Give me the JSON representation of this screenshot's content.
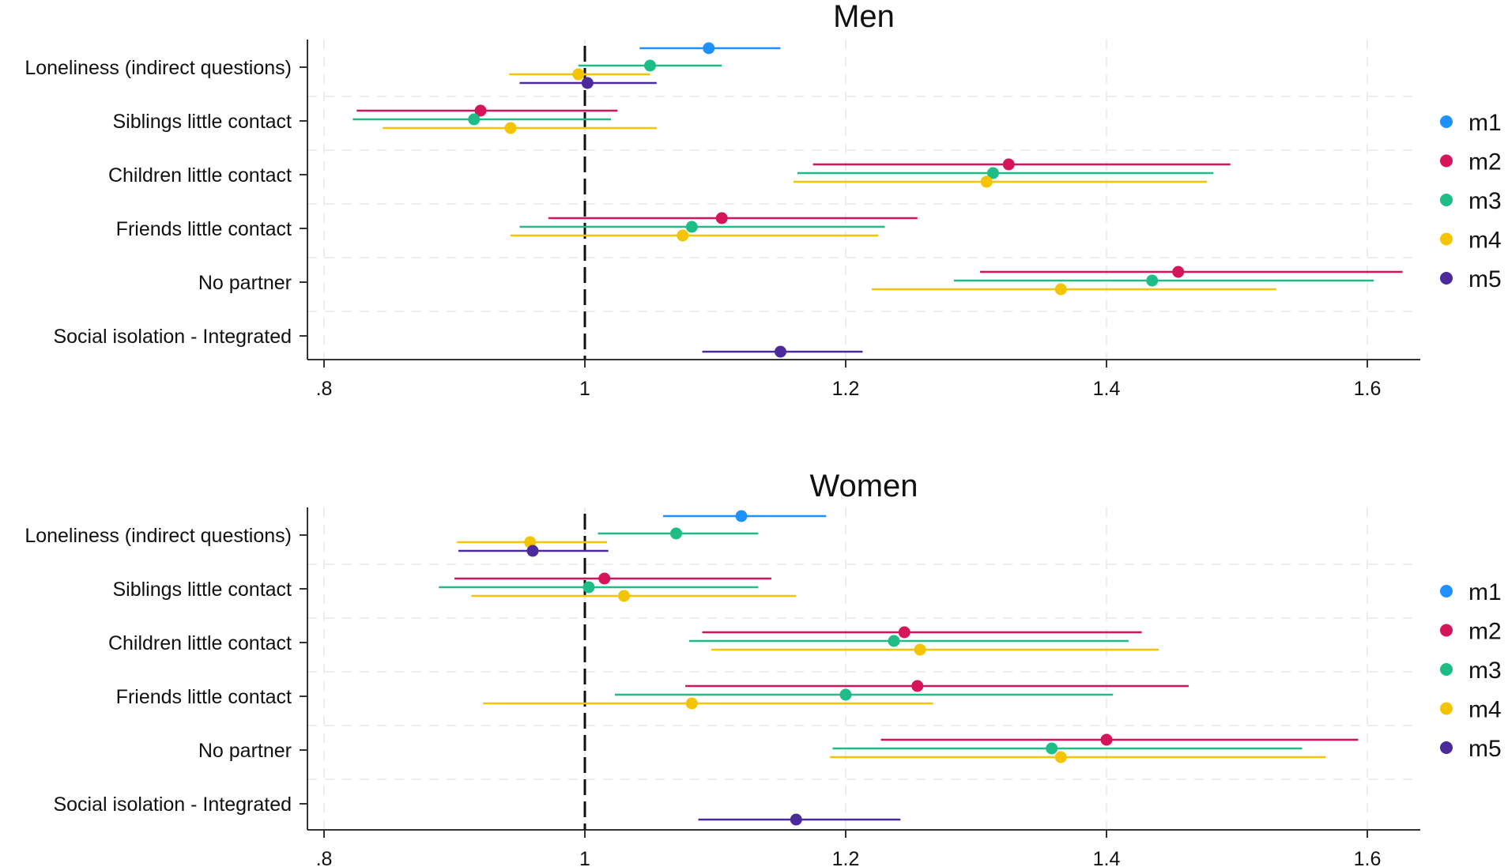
{
  "chart_data": [
    {
      "type": "coefficient-plot",
      "title": "Men",
      "categories": [
        "Loneliness (indirect questions)",
        "Siblings little contact",
        "Children little contact",
        "Friends little contact",
        "No partner",
        "Social isolation - Integrated"
      ],
      "xlim": [
        0.79,
        1.64
      ],
      "xticks": [
        0.8,
        1.0,
        1.2,
        1.4,
        1.6
      ],
      "xtick_labels": [
        ".8",
        "1",
        "1.2",
        "1.4",
        "1.6"
      ],
      "reference_line": 1,
      "legend": [
        "m1",
        "m2",
        "m3",
        "m4",
        "m5"
      ],
      "series": [
        {
          "name": "m1",
          "color": "#1e90ff",
          "points": [
            {
              "category": 0,
              "est": 1.095,
              "lo": 1.042,
              "hi": 1.15
            }
          ]
        },
        {
          "name": "m2",
          "color": "#d6145a",
          "points": [
            {
              "category": 1,
              "est": 0.92,
              "lo": 0.825,
              "hi": 1.025
            },
            {
              "category": 2,
              "est": 1.325,
              "lo": 1.175,
              "hi": 1.495
            },
            {
              "category": 3,
              "est": 1.105,
              "lo": 0.972,
              "hi": 1.255
            },
            {
              "category": 4,
              "est": 1.455,
              "lo": 1.303,
              "hi": 1.627
            }
          ]
        },
        {
          "name": "m3",
          "color": "#1ebd85",
          "points": [
            {
              "category": 0,
              "est": 1.05,
              "lo": 0.995,
              "hi": 1.105
            },
            {
              "category": 1,
              "est": 0.915,
              "lo": 0.822,
              "hi": 1.02
            },
            {
              "category": 2,
              "est": 1.313,
              "lo": 1.163,
              "hi": 1.482
            },
            {
              "category": 3,
              "est": 1.082,
              "lo": 0.95,
              "hi": 1.23
            },
            {
              "category": 4,
              "est": 1.435,
              "lo": 1.283,
              "hi": 1.605
            }
          ]
        },
        {
          "name": "m4",
          "color": "#f5c400",
          "points": [
            {
              "category": 0,
              "est": 0.995,
              "lo": 0.942,
              "hi": 1.05
            },
            {
              "category": 1,
              "est": 0.943,
              "lo": 0.845,
              "hi": 1.055
            },
            {
              "category": 2,
              "est": 1.308,
              "lo": 1.16,
              "hi": 1.477
            },
            {
              "category": 3,
              "est": 1.075,
              "lo": 0.943,
              "hi": 1.225
            },
            {
              "category": 4,
              "est": 1.365,
              "lo": 1.22,
              "hi": 1.53
            }
          ]
        },
        {
          "name": "m5",
          "color": "#4b2a9b",
          "points": [
            {
              "category": 0,
              "est": 1.002,
              "lo": 0.95,
              "hi": 1.055
            },
            {
              "category": 5,
              "est": 1.15,
              "lo": 1.09,
              "hi": 1.213
            }
          ]
        }
      ]
    },
    {
      "type": "coefficient-plot",
      "title": "Women",
      "categories": [
        "Loneliness (indirect questions)",
        "Siblings little contact",
        "Children little contact",
        "Friends little contact",
        "No partner",
        "Social isolation - Integrated"
      ],
      "xlim": [
        0.79,
        1.64
      ],
      "xticks": [
        0.8,
        1.0,
        1.2,
        1.4,
        1.6
      ],
      "xtick_labels": [
        ".8",
        "1",
        "1.2",
        "1.4",
        "1.6"
      ],
      "reference_line": 1,
      "legend": [
        "m1",
        "m2",
        "m3",
        "m4",
        "m5"
      ],
      "series": [
        {
          "name": "m1",
          "color": "#1e90ff",
          "points": [
            {
              "category": 0,
              "est": 1.12,
              "lo": 1.06,
              "hi": 1.185
            }
          ]
        },
        {
          "name": "m2",
          "color": "#d6145a",
          "points": [
            {
              "category": 1,
              "est": 1.015,
              "lo": 0.9,
              "hi": 1.143
            },
            {
              "category": 2,
              "est": 1.245,
              "lo": 1.09,
              "hi": 1.427
            },
            {
              "category": 3,
              "est": 1.255,
              "lo": 1.077,
              "hi": 1.463
            },
            {
              "category": 4,
              "est": 1.4,
              "lo": 1.227,
              "hi": 1.593
            }
          ]
        },
        {
          "name": "m3",
          "color": "#1ebd85",
          "points": [
            {
              "category": 0,
              "est": 1.07,
              "lo": 1.01,
              "hi": 1.133
            },
            {
              "category": 1,
              "est": 1.003,
              "lo": 0.888,
              "hi": 1.133
            },
            {
              "category": 2,
              "est": 1.237,
              "lo": 1.08,
              "hi": 1.417
            },
            {
              "category": 3,
              "est": 1.2,
              "lo": 1.023,
              "hi": 1.405
            },
            {
              "category": 4,
              "est": 1.358,
              "lo": 1.19,
              "hi": 1.55
            }
          ]
        },
        {
          "name": "m4",
          "color": "#f5c400",
          "points": [
            {
              "category": 0,
              "est": 0.958,
              "lo": 0.902,
              "hi": 1.017
            },
            {
              "category": 1,
              "est": 1.03,
              "lo": 0.913,
              "hi": 1.162
            },
            {
              "category": 2,
              "est": 1.257,
              "lo": 1.097,
              "hi": 1.44
            },
            {
              "category": 3,
              "est": 1.082,
              "lo": 0.922,
              "hi": 1.267
            },
            {
              "category": 4,
              "est": 1.365,
              "lo": 1.188,
              "hi": 1.568
            }
          ]
        },
        {
          "name": "m5",
          "color": "#4b2a9b",
          "points": [
            {
              "category": 0,
              "est": 0.96,
              "lo": 0.903,
              "hi": 1.018
            },
            {
              "category": 5,
              "est": 1.162,
              "lo": 1.087,
              "hi": 1.242
            }
          ]
        }
      ]
    }
  ]
}
